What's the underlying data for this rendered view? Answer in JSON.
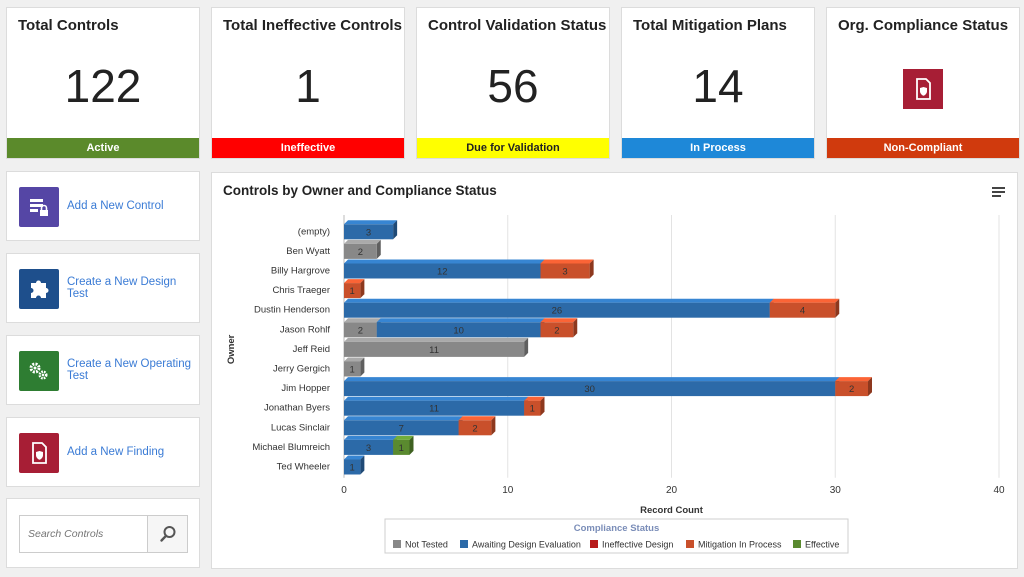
{
  "kpis": [
    {
      "title": "Total Controls",
      "value": "122",
      "footer": "Active",
      "footer_bg": "#5b8a2b",
      "footer_fg": "#ffffff"
    },
    {
      "title": "Total Ineffective Controls",
      "value": "1",
      "footer": "Ineffective",
      "footer_bg": "#ff0000",
      "footer_fg": "#ffffff"
    },
    {
      "title": "Control Validation Status",
      "value": "56",
      "footer": "Due for Validation",
      "footer_bg": "#ffff00",
      "footer_fg": "#222222"
    },
    {
      "title": "Total Mitigation Plans",
      "value": "14",
      "footer": "In Process",
      "footer_bg": "#1e88d8",
      "footer_fg": "#ffffff"
    },
    {
      "title": "Org. Compliance Status",
      "value": "",
      "icon": "shield-document-icon",
      "footer": "Non-Compliant",
      "footer_bg": "#d03a0d",
      "footer_fg": "#ffffff"
    }
  ],
  "actions": [
    {
      "label": "Add a New Control",
      "icon": "control-lock-icon",
      "color": "#5546a5"
    },
    {
      "label": "Create a New Design Test",
      "icon": "puzzle-icon",
      "color": "#1e4f8c"
    },
    {
      "label": "Create a New Operating Test",
      "icon": "gears-icon",
      "color": "#2e7d32"
    },
    {
      "label": "Add a New Finding",
      "icon": "shield-document-icon",
      "color": "#a71e35"
    }
  ],
  "search": {
    "placeholder": "Search Controls",
    "icon": "search-icon"
  },
  "chart_title": "Controls by Owner and Compliance Status",
  "menu_icon": "hamburger-menu-icon",
  "colors": {
    "Not Tested": "#888888",
    "Awaiting Design Evaluation": "#2c6aa8",
    "Ineffective Design": "#b71c1c",
    "Mitigation In Process": "#c9502b",
    "Effective": "#5a8a2f"
  },
  "chart_data": {
    "type": "bar",
    "orientation": "horizontal",
    "stacked": true,
    "categories": [
      "(empty)",
      "Ben Wyatt",
      "Billy Hargrove",
      "Chris Traeger",
      "Dustin Henderson",
      "Jason Rohlf",
      "Jeff Reid",
      "Jerry Gergich",
      "Jim Hopper",
      "Jonathan Byers",
      "Lucas Sinclair",
      "Michael Blumreich",
      "Ted Wheeler"
    ],
    "series": [
      {
        "name": "Not Tested",
        "values": [
          0,
          2,
          0,
          0,
          0,
          2,
          11,
          1,
          0,
          0,
          0,
          0,
          0
        ]
      },
      {
        "name": "Awaiting Design Evaluation",
        "values": [
          3,
          0,
          12,
          0,
          26,
          10,
          0,
          0,
          30,
          11,
          7,
          3,
          1
        ]
      },
      {
        "name": "Ineffective Design",
        "values": [
          0,
          0,
          0,
          0,
          0,
          0,
          0,
          0,
          0,
          0,
          0,
          0,
          0
        ]
      },
      {
        "name": "Mitigation In Process",
        "values": [
          0,
          0,
          3,
          1,
          4,
          2,
          0,
          0,
          2,
          1,
          2,
          0,
          0
        ]
      },
      {
        "name": "Effective",
        "values": [
          0,
          0,
          0,
          0,
          0,
          0,
          0,
          0,
          0,
          0,
          0,
          1,
          0
        ]
      }
    ],
    "xlabel": "Record Count",
    "ylabel": "Owner",
    "xlim": [
      0,
      40
    ],
    "xticks": [
      0,
      10,
      20,
      30,
      40
    ],
    "legend_title": "Compliance Status",
    "legend_position": "bottom",
    "grid": true
  }
}
